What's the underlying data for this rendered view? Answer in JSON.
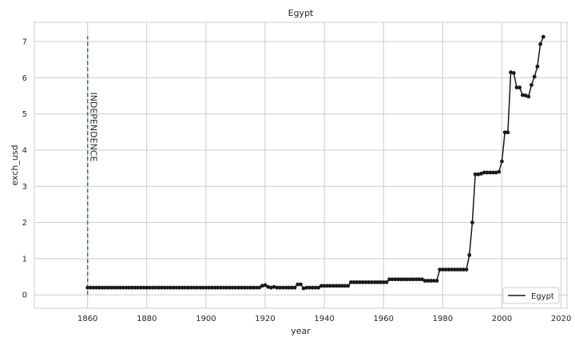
{
  "chart_data": {
    "type": "line",
    "title": "Egypt",
    "xlabel": "year",
    "ylabel": "exch_usd",
    "xlim": [
      1842,
      2022
    ],
    "ylim": [
      -0.37,
      7.53
    ],
    "xticks": [
      1860,
      1880,
      1900,
      1920,
      1940,
      1960,
      1980,
      2000,
      2020
    ],
    "yticks": [
      0,
      1,
      2,
      3,
      4,
      5,
      6,
      7
    ],
    "grid": true,
    "legend": {
      "placement": "bottom-right",
      "entries": [
        "Egypt"
      ]
    },
    "colors": {
      "line": "#1a1a1a",
      "vline": "#228b22",
      "grid": "#cccccc",
      "legend_border": "#cccccc"
    },
    "annotations": [
      {
        "text": "INDEPENDENCE",
        "x": 1860,
        "line_from": 0,
        "line_to": 7.15,
        "rotation": 90
      }
    ],
    "series": [
      {
        "name": "Egypt",
        "segments": [
          {
            "from": 1860,
            "to": 1918,
            "value": 0.2
          },
          {
            "from": 1919,
            "to": 1919,
            "value": 0.25
          },
          {
            "from": 1920,
            "to": 1920,
            "value": 0.27
          },
          {
            "from": 1921,
            "to": 1921,
            "value": 0.22
          },
          {
            "from": 1922,
            "to": 1922,
            "value": 0.2
          },
          {
            "from": 1923,
            "to": 1923,
            "value": 0.22
          },
          {
            "from": 1924,
            "to": 1930,
            "value": 0.2
          },
          {
            "from": 1931,
            "to": 1932,
            "value": 0.29
          },
          {
            "from": 1933,
            "to": 1933,
            "value": 0.18
          },
          {
            "from": 1934,
            "to": 1938,
            "value": 0.2
          },
          {
            "from": 1939,
            "to": 1948,
            "value": 0.25
          },
          {
            "from": 1949,
            "to": 1961,
            "value": 0.35
          },
          {
            "from": 1962,
            "to": 1973,
            "value": 0.43
          },
          {
            "from": 1974,
            "to": 1978,
            "value": 0.39
          },
          {
            "from": 1979,
            "to": 1988,
            "value": 0.7
          },
          {
            "from": 1989,
            "to": 1989,
            "value": 1.1
          },
          {
            "from": 1990,
            "to": 1990,
            "value": 2.0
          },
          {
            "from": 1991,
            "to": 1991,
            "value": 3.33
          },
          {
            "from": 1992,
            "to": 1992,
            "value": 3.33
          },
          {
            "from": 1993,
            "to": 1993,
            "value": 3.35
          },
          {
            "from": 1994,
            "to": 1998,
            "value": 3.38
          },
          {
            "from": 1999,
            "to": 1999,
            "value": 3.4
          },
          {
            "from": 2000,
            "to": 2000,
            "value": 3.69
          },
          {
            "from": 2001,
            "to": 2001,
            "value": 4.49
          },
          {
            "from": 2002,
            "to": 2002,
            "value": 4.49
          },
          {
            "from": 2003,
            "to": 2003,
            "value": 6.15
          },
          {
            "from": 2004,
            "to": 2004,
            "value": 6.13
          },
          {
            "from": 2005,
            "to": 2005,
            "value": 5.73
          },
          {
            "from": 2006,
            "to": 2006,
            "value": 5.73
          },
          {
            "from": 2007,
            "to": 2007,
            "value": 5.52
          },
          {
            "from": 2008,
            "to": 2008,
            "value": 5.51
          },
          {
            "from": 2009,
            "to": 2009,
            "value": 5.48
          },
          {
            "from": 2010,
            "to": 2010,
            "value": 5.8
          },
          {
            "from": 2011,
            "to": 2011,
            "value": 6.03
          },
          {
            "from": 2012,
            "to": 2012,
            "value": 6.31
          },
          {
            "from": 2013,
            "to": 2013,
            "value": 6.93
          },
          {
            "from": 2014,
            "to": 2014,
            "value": 7.13
          }
        ]
      }
    ]
  }
}
